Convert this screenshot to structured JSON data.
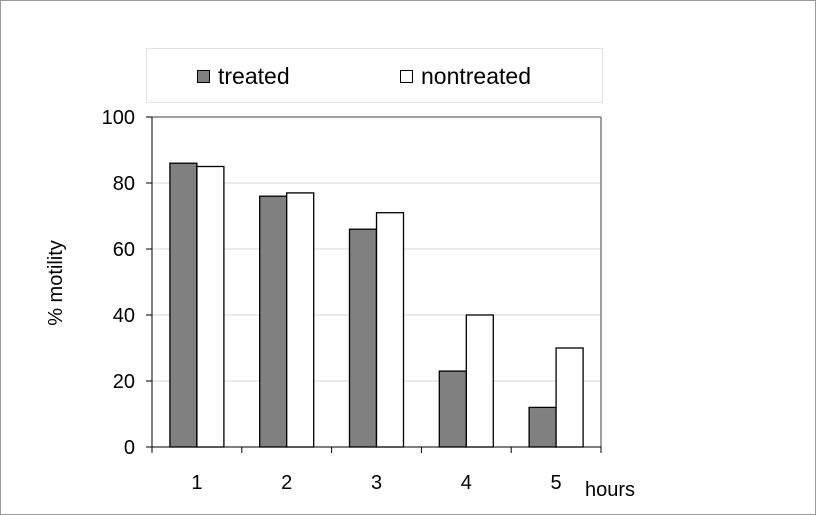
{
  "chart_data": {
    "type": "bar",
    "categories": [
      "1",
      "2",
      "3",
      "4",
      "5"
    ],
    "series": [
      {
        "name": "treated",
        "values": [
          86,
          76,
          66,
          23,
          12
        ],
        "color": "#808080"
      },
      {
        "name": "nontreated",
        "values": [
          85,
          77,
          71,
          40,
          30
        ],
        "color": "#ffffff"
      }
    ],
    "xlabel": "hours",
    "ylabel": "% motility",
    "ylim": [
      0,
      100
    ],
    "yticks": [
      0,
      20,
      40,
      60,
      80,
      100
    ],
    "grid": true,
    "legend_position": "top"
  }
}
